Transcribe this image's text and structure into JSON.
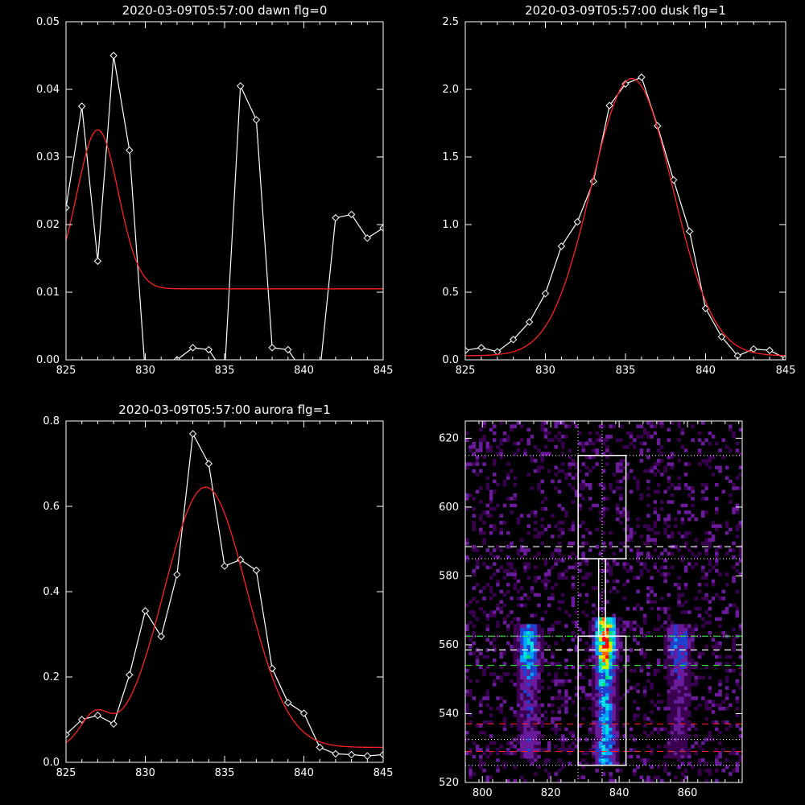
{
  "chart_data": [
    {
      "id": "dawn",
      "type": "line",
      "title": "2020-03-09T05:57:00 dawn flg=0",
      "xlim": [
        825,
        845
      ],
      "ylim": [
        0,
        0.05
      ],
      "xticks": [
        825,
        830,
        835,
        840,
        845
      ],
      "xtick_labels": [
        "825",
        "830",
        "835",
        "840",
        "845"
      ],
      "yticks": [
        0,
        0.01,
        0.02,
        0.03,
        0.04,
        0.05
      ],
      "ytick_labels": [
        "0.00",
        "0.01",
        "0.02",
        "0.03",
        "0.04",
        "0.05"
      ],
      "series": [
        {
          "style": "data-diamond",
          "color": "#ffffff",
          "x": [
            825,
            826,
            827,
            828,
            829,
            830,
            831,
            832,
            833,
            834,
            835,
            836,
            837,
            838,
            839,
            840,
            841,
            842,
            843,
            844,
            845
          ],
          "y": [
            0.0225,
            0.0375,
            0.0146,
            0.045,
            0.031,
            -0.002,
            -0.002,
            0.0,
            0.0018,
            0.0015,
            -0.002,
            0.0405,
            0.0355,
            0.0018,
            0.0015,
            -0.002,
            -0.002,
            0.021,
            0.0215,
            0.018,
            0.0195
          ],
          "markers": [
            0,
            1,
            2,
            3,
            4,
            7,
            8,
            9,
            11,
            12,
            13,
            14,
            17,
            18,
            19,
            20
          ]
        },
        {
          "style": "fit",
          "color": "#ff2020",
          "fit": {
            "amp": 0.0235,
            "center": 827.0,
            "sigma": 1.3,
            "base": 0.0105
          }
        }
      ]
    },
    {
      "id": "dusk",
      "type": "line",
      "title": "2020-03-09T05:57:00 dusk flg=1",
      "xlim": [
        825,
        845
      ],
      "ylim": [
        0,
        2.5
      ],
      "xticks": [
        825,
        830,
        835,
        840,
        845
      ],
      "xtick_labels": [
        "825",
        "830",
        "835",
        "840",
        "845"
      ],
      "yticks": [
        0,
        0.5,
        1.0,
        1.5,
        2.0,
        2.5
      ],
      "ytick_labels": [
        "0.0",
        "0.5",
        "1.0",
        "1.5",
        "2.0",
        "2.5"
      ],
      "series": [
        {
          "style": "data-diamond",
          "color": "#ffffff",
          "x": [
            825,
            826,
            827,
            828,
            829,
            830,
            831,
            832,
            833,
            834,
            835,
            836,
            837,
            838,
            839,
            840,
            841,
            842,
            843,
            844,
            845
          ],
          "y": [
            0.07,
            0.09,
            0.06,
            0.15,
            0.28,
            0.49,
            0.84,
            1.02,
            1.32,
            1.88,
            2.04,
            2.09,
            1.73,
            1.33,
            0.95,
            0.38,
            0.17,
            0.03,
            0.08,
            0.07,
            0.01
          ],
          "markers": [
            0,
            1,
            2,
            3,
            4,
            5,
            6,
            7,
            8,
            9,
            10,
            11,
            12,
            13,
            14,
            15,
            16,
            17,
            18,
            19,
            20
          ]
        },
        {
          "style": "fit",
          "color": "#ff2020",
          "fit": {
            "amp": 2.05,
            "center": 835.4,
            "sigma": 2.55,
            "base": 0.03
          }
        }
      ]
    },
    {
      "id": "aurora",
      "type": "line",
      "title": "2020-03-09T05:57:00 aurora flg=1",
      "xlim": [
        825,
        845
      ],
      "ylim": [
        0,
        0.8
      ],
      "xticks": [
        825,
        830,
        835,
        840,
        845
      ],
      "xtick_labels": [
        "825",
        "830",
        "835",
        "840",
        "845"
      ],
      "yticks": [
        0,
        0.2,
        0.4,
        0.6,
        0.8
      ],
      "ytick_labels": [
        "0.0",
        "0.2",
        "0.4",
        "0.6",
        "0.8"
      ],
      "series": [
        {
          "style": "data-diamond",
          "color": "#ffffff",
          "x": [
            825,
            826,
            827,
            828,
            829,
            830,
            831,
            832,
            833,
            834,
            835,
            836,
            837,
            838,
            839,
            840,
            841,
            842,
            843,
            844,
            845
          ],
          "y": [
            0.065,
            0.1,
            0.11,
            0.09,
            0.205,
            0.355,
            0.295,
            0.44,
            0.77,
            0.7,
            0.46,
            0.475,
            0.45,
            0.22,
            0.14,
            0.115,
            0.035,
            0.02,
            0.018,
            0.015,
            0.018
          ],
          "markers": [
            0,
            1,
            2,
            3,
            4,
            5,
            6,
            7,
            8,
            9,
            10,
            11,
            12,
            13,
            14,
            15,
            16,
            17,
            18,
            19,
            20
          ]
        },
        {
          "style": "fit",
          "color": "#ff2020",
          "fit": {
            "amp": 0.61,
            "center": 833.8,
            "sigma": 2.6,
            "base": 0.035,
            "amp2": 0.07,
            "center2": 826.8,
            "sigma2": 0.9
          }
        }
      ]
    },
    {
      "id": "image",
      "type": "heatmap",
      "title": "",
      "xlim": [
        795,
        876
      ],
      "ylim": [
        520,
        625
      ],
      "xticks": [
        800,
        820,
        840,
        860
      ],
      "xtick_labels": [
        "800",
        "820",
        "840",
        "860"
      ],
      "yticks": [
        520,
        540,
        560,
        580,
        600,
        620
      ],
      "ytick_labels": [
        "520",
        "540",
        "560",
        "580",
        "600",
        "620"
      ],
      "cmap": [
        "#000000",
        "#3a0050",
        "#6a1a9a",
        "#2040d0",
        "#00a0ff",
        "#00e0e0",
        "#00e060",
        "#c0ff00",
        "#ffd000",
        "#ff6000",
        "#ff0000"
      ],
      "features": {
        "background_level": 0.12,
        "bands": [
          {
            "center_x": 813.0,
            "width": 2.2,
            "y_from": 527,
            "y_to": 565,
            "peak": 0.5,
            "peak_y": 558
          },
          {
            "center_x": 835.5,
            "width": 2.0,
            "y_from": 525,
            "y_to": 567,
            "peak": 1.0,
            "peak_y": 561
          },
          {
            "center_x": 857.0,
            "width": 2.5,
            "y_from": 527,
            "y_to": 565,
            "peak": 0.35,
            "peak_y": 559
          }
        ]
      },
      "overlays": {
        "vertical_dotted": [
          828,
          835
        ],
        "horizontal_dotted": [
          615,
          585,
          562.5,
          532.5,
          525
        ],
        "white_dashed": [
          588.5,
          558.5
        ],
        "green_dashed": [
          562.5,
          554
        ],
        "red_dashed": [
          537,
          529
        ],
        "boxes": [
          {
            "x0": 828,
            "x1": 842,
            "y0": 585,
            "y1": 615
          },
          {
            "x0": 828,
            "x1": 842,
            "y0": 525,
            "y1": 562.5
          }
        ],
        "connector": {
          "x0": 834,
          "x1": 836,
          "y0": 562.5,
          "y1": 585
        }
      }
    }
  ]
}
